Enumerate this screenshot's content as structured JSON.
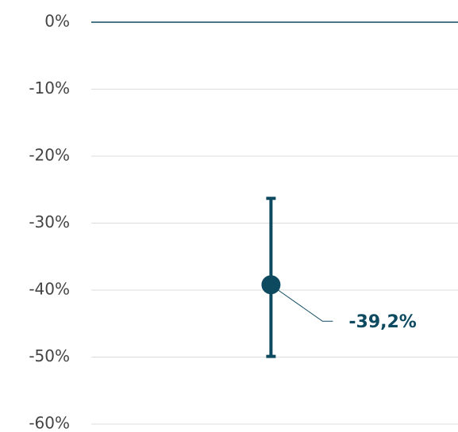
{
  "chart_data": {
    "type": "errorpoint",
    "categories": [
      null
    ],
    "values": [
      -39.2
    ],
    "value_labels": [
      "-39,2%"
    ],
    "lower": [
      -49.9
    ],
    "upper": [
      -26.3
    ],
    "color": "#0d4a60",
    "ylim": [
      -60,
      0
    ],
    "yticks": [
      {
        "value": 0,
        "label": "0%"
      },
      {
        "value": -10,
        "label": "-10%"
      },
      {
        "value": -20,
        "label": "-20%"
      },
      {
        "value": -30,
        "label": "-30%"
      },
      {
        "value": -40,
        "label": "-40%"
      },
      {
        "value": -50,
        "label": "-50%"
      },
      {
        "value": -60,
        "label": "-60%"
      }
    ],
    "grid": true
  }
}
